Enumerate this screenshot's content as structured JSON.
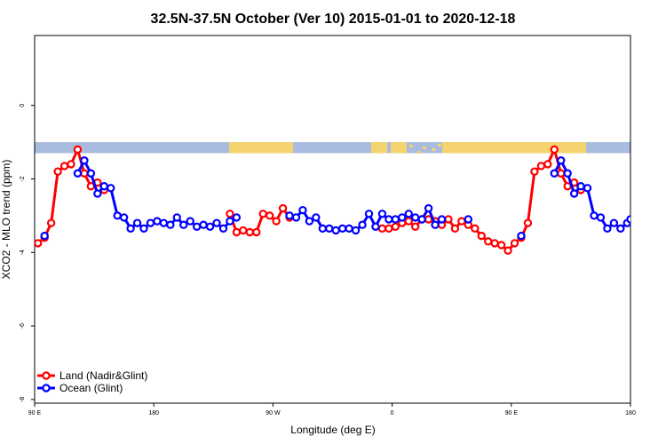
{
  "chart_data": {
    "type": "line",
    "title": "32.5N-37.5N October (Ver 10)   2015-01-01 to 2020-12-18",
    "xlabel": "Longitude (deg E)",
    "ylabel": "XCO2 - MLO trend (ppm)",
    "x_ticks": [
      {
        "value": 90,
        "label": "90 E"
      },
      {
        "value": 180,
        "label": "180"
      },
      {
        "value": 270,
        "label": "90 W"
      },
      {
        "value": 360,
        "label": "0"
      },
      {
        "value": 450,
        "label": "90 E"
      },
      {
        "value": 540,
        "label": "180"
      }
    ],
    "y_ticks": [
      {
        "value": 0,
        "label": "0"
      },
      {
        "value": -2,
        "label": "-2"
      },
      {
        "value": -4,
        "label": "-4"
      },
      {
        "value": -6,
        "label": "-6"
      },
      {
        "value": -8,
        "label": "-8"
      }
    ],
    "xlim": [
      90,
      540
    ],
    "ylim": [
      -8.1,
      1.9
    ],
    "land_mask_band": {
      "y_top": -1.0,
      "y_bottom": -1.3,
      "land_color": "#F5D36E",
      "ocean_color": "#A9BCE0"
    },
    "legend": {
      "position": "bottom-left"
    },
    "series": [
      {
        "name": "Land (Nadir&Glint)",
        "color": "#FF0000",
        "points": [
          [
            92.5,
            -3.75
          ],
          [
            97.5,
            -3.6
          ],
          [
            102.5,
            -3.2
          ],
          [
            107.5,
            -1.8
          ],
          [
            112.5,
            -1.65
          ],
          [
            117.5,
            -1.6
          ],
          [
            122.5,
            -1.2
          ],
          [
            127.5,
            -1.85
          ],
          [
            132.5,
            -2.2
          ],
          [
            137.5,
            -2.1
          ],
          [
            142.5,
            -2.3
          ],
          null,
          [
            237.5,
            -2.95
          ],
          [
            242.5,
            -3.45
          ],
          [
            247.5,
            -3.4
          ],
          [
            252.5,
            -3.45
          ],
          [
            257.5,
            -3.45
          ],
          [
            262.5,
            -2.95
          ],
          [
            267.5,
            -3.0
          ],
          [
            272.5,
            -3.15
          ],
          [
            277.5,
            -2.8
          ],
          [
            282.5,
            -3.05
          ],
          null,
          [
            352.5,
            -3.35
          ],
          [
            357.5,
            -3.35
          ],
          [
            362.5,
            -3.3
          ],
          [
            367.5,
            -3.2
          ],
          [
            372.5,
            -3.15
          ],
          [
            377.5,
            -3.3
          ],
          [
            382.5,
            -3.1
          ],
          [
            387.5,
            -3.1
          ],
          [
            392.5,
            -3.15
          ],
          [
            397.5,
            -3.25
          ],
          [
            402.5,
            -3.1
          ],
          [
            407.5,
            -3.35
          ],
          [
            412.5,
            -3.15
          ],
          [
            417.5,
            -3.25
          ],
          [
            422.5,
            -3.35
          ],
          [
            427.5,
            -3.55
          ],
          [
            432.5,
            -3.7
          ],
          [
            437.5,
            -3.75
          ],
          [
            442.5,
            -3.8
          ],
          [
            447.5,
            -3.95
          ],
          [
            452.5,
            -3.75
          ],
          [
            457.5,
            -3.6
          ],
          [
            462.5,
            -3.2
          ],
          [
            467.5,
            -1.8
          ],
          [
            472.5,
            -1.65
          ],
          [
            477.5,
            -1.6
          ],
          [
            482.5,
            -1.2
          ],
          [
            487.5,
            -1.85
          ],
          [
            492.5,
            -2.2
          ],
          [
            497.5,
            -2.1
          ],
          [
            502.5,
            -2.3
          ]
        ]
      },
      {
        "name": "Ocean (Glint)",
        "color": "#0000FF",
        "points": [
          [
            97.5,
            -3.55
          ],
          null,
          [
            122.5,
            -1.85
          ],
          [
            127.5,
            -1.5
          ],
          [
            132.5,
            -1.85
          ],
          [
            137.5,
            -2.4
          ],
          [
            142.5,
            -2.2
          ],
          [
            147.5,
            -2.25
          ],
          [
            152.5,
            -3.0
          ],
          [
            157.5,
            -3.05
          ],
          [
            162.5,
            -3.35
          ],
          [
            167.5,
            -3.2
          ],
          [
            172.5,
            -3.35
          ],
          [
            177.5,
            -3.2
          ],
          [
            182.5,
            -3.15
          ],
          [
            187.5,
            -3.2
          ],
          [
            192.5,
            -3.25
          ],
          [
            197.5,
            -3.05
          ],
          [
            202.5,
            -3.25
          ],
          [
            207.5,
            -3.15
          ],
          [
            212.5,
            -3.3
          ],
          [
            217.5,
            -3.25
          ],
          [
            222.5,
            -3.3
          ],
          [
            227.5,
            -3.2
          ],
          [
            232.5,
            -3.35
          ],
          [
            237.5,
            -3.15
          ],
          [
            242.5,
            -3.05
          ],
          null,
          [
            282.5,
            -3.0
          ],
          [
            287.5,
            -3.05
          ],
          [
            292.5,
            -2.85
          ],
          [
            297.5,
            -3.15
          ],
          [
            302.5,
            -3.05
          ],
          [
            307.5,
            -3.35
          ],
          [
            312.5,
            -3.35
          ],
          [
            317.5,
            -3.4
          ],
          [
            322.5,
            -3.35
          ],
          [
            327.5,
            -3.35
          ],
          [
            332.5,
            -3.4
          ],
          [
            337.5,
            -3.25
          ],
          [
            342.5,
            -2.95
          ],
          [
            347.5,
            -3.3
          ],
          [
            352.5,
            -2.95
          ],
          [
            357.5,
            -3.1
          ],
          [
            362.5,
            -3.1
          ],
          [
            367.5,
            -3.05
          ],
          [
            372.5,
            -2.95
          ],
          [
            377.5,
            -3.05
          ],
          [
            382.5,
            -3.1
          ],
          [
            387.5,
            -2.8
          ],
          [
            392.5,
            -3.25
          ],
          [
            397.5,
            -3.1
          ],
          null,
          [
            417.5,
            -3.1
          ],
          null,
          [
            457.5,
            -3.55
          ],
          null,
          [
            482.5,
            -1.85
          ],
          [
            487.5,
            -1.5
          ],
          [
            492.5,
            -1.85
          ],
          [
            497.5,
            -2.4
          ],
          [
            502.5,
            -2.2
          ],
          [
            507.5,
            -2.25
          ],
          [
            512.5,
            -3.0
          ],
          [
            517.5,
            -3.05
          ],
          [
            522.5,
            -3.35
          ],
          [
            527.5,
            -3.2
          ],
          [
            532.5,
            -3.35
          ],
          [
            537.5,
            -3.2
          ],
          [
            540,
            -3.1
          ]
        ]
      }
    ]
  }
}
